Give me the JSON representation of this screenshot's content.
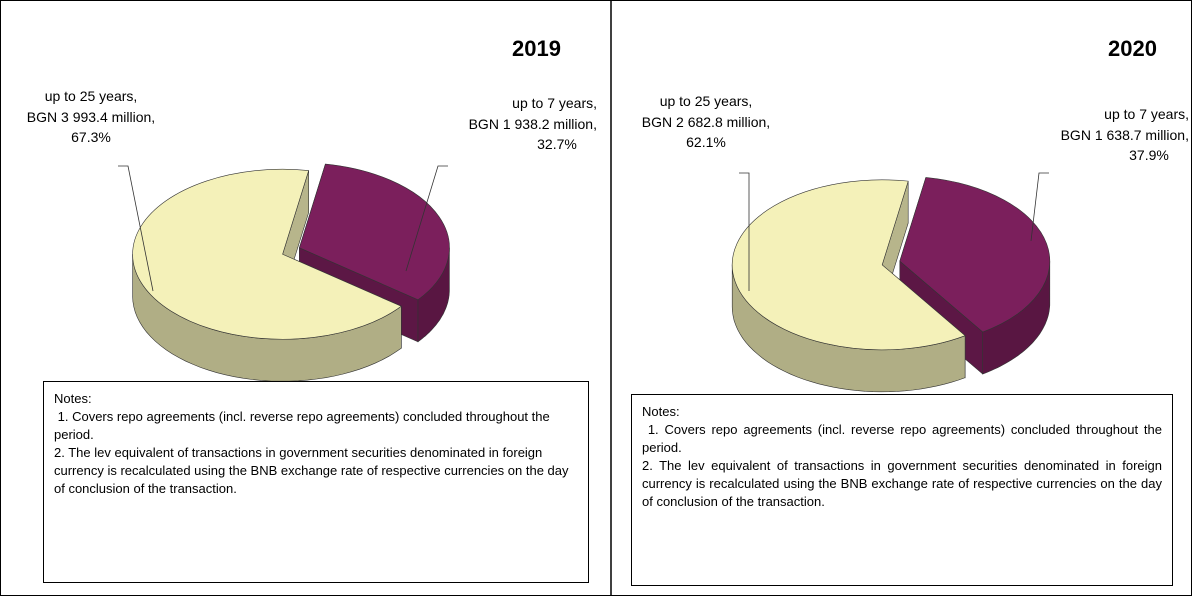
{
  "chart_data": [
    {
      "type": "pie",
      "title": "2019",
      "categories": [
        "up to 25 years,",
        "up to 7 years,"
      ],
      "amounts": [
        "BGN 3 993.4 million,",
        "BGN  1 938.2 million,"
      ],
      "values": [
        67.3,
        32.7
      ],
      "value_labels": [
        "67.3%",
        "32.7%"
      ],
      "colors": [
        "#f4f1b9",
        "#7b1f5c"
      ],
      "notes": {
        "heading": "Notes:",
        "items": [
          " 1. Covers repo agreements (incl. reverse repo agreements) concluded throughout the period.",
          "2. The lev equivalent of transactions in government securities denominated in foreign currency is recalculated using the BNB exchange rate of respective currencies on the day of conclusion of the transaction."
        ]
      }
    },
    {
      "type": "pie",
      "title": "2020",
      "categories": [
        "up to 25 years,",
        "up to 7 years,"
      ],
      "amounts": [
        "BGN 2 682.8 million,",
        "BGN 1 638.7 million,"
      ],
      "values": [
        62.1,
        37.9
      ],
      "value_labels": [
        "62.1%",
        "37.9%"
      ],
      "colors": [
        "#f4f1b9",
        "#7b1f5c"
      ],
      "notes": {
        "heading": "Notes:",
        "items": [
          " 1. Covers repo agreements (incl. reverse repo agreements) concluded throughout the period.",
          "2. The lev equivalent of transactions in government securities denominated in foreign currency is recalculated using the BNB exchange rate of respective currencies on the day of conclusion of the transaction."
        ]
      }
    }
  ]
}
